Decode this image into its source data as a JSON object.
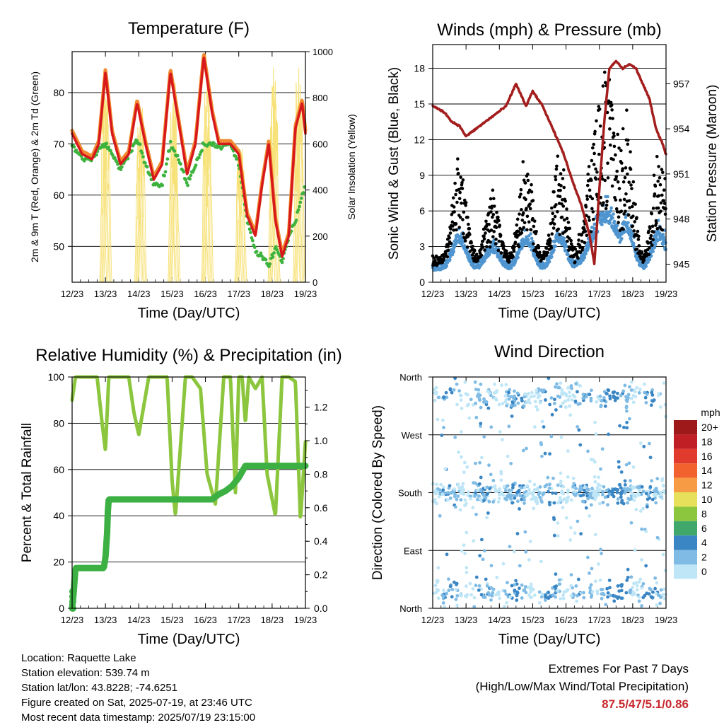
{
  "chart_data": [
    {
      "type": "line",
      "title": "Temperature (F)",
      "xlabel": "Time (Day/UTC)",
      "ylabel": "2m & 9m T (Red, Orange) & 2m Td (Green)",
      "y2label": "Solar Insolation (Yellow)",
      "x_ticks": [
        "12/23",
        "13/23",
        "14/23",
        "15/23",
        "16/23",
        "17/23",
        "18/23",
        "19/23"
      ],
      "ylim": [
        43,
        88
      ],
      "y_ticks": [
        50,
        60,
        70,
        80
      ],
      "y2lim": [
        0,
        1000
      ],
      "y2_ticks": [
        0,
        200,
        400,
        600,
        800,
        1000
      ],
      "colors": {
        "t2m": "#d7191c",
        "t9m": "#f28a30",
        "td": "#3db33d",
        "solar": "#f7e27a"
      },
      "series": [
        {
          "name": "2m T",
          "x": [
            0,
            0.3,
            0.6,
            0.8,
            1.0,
            1.2,
            1.45,
            1.7,
            1.95,
            2.2,
            2.45,
            2.7,
            2.95,
            3.2,
            3.45,
            3.7,
            3.95,
            4.2,
            4.4,
            4.6,
            4.75,
            5.0,
            5.25,
            5.5,
            5.7,
            5.9,
            6.1,
            6.3,
            6.5,
            6.7,
            6.9,
            7.0
          ],
          "values": [
            72,
            68,
            67,
            70,
            84,
            72,
            66,
            68,
            78,
            70,
            63,
            66,
            84,
            74,
            64,
            70,
            87,
            76,
            70,
            70,
            70,
            68,
            56,
            52,
            62,
            70,
            55,
            48,
            52,
            73,
            78,
            72
          ]
        },
        {
          "name": "2m Td",
          "x": [
            0,
            0.3,
            0.6,
            0.8,
            1.0,
            1.2,
            1.45,
            1.7,
            1.95,
            2.2,
            2.45,
            2.7,
            2.95,
            3.2,
            3.45,
            3.7,
            3.95,
            4.2,
            4.4,
            4.6,
            4.75,
            5.0,
            5.25,
            5.5,
            5.7,
            5.9,
            6.1,
            6.3,
            6.5,
            6.7,
            6.9,
            7.0
          ],
          "values": [
            70,
            67,
            67,
            69,
            70,
            68,
            65,
            68,
            71,
            66,
            62,
            62,
            70,
            67,
            62,
            66,
            70,
            70,
            69,
            70,
            70,
            66,
            55,
            49,
            48,
            46,
            50,
            47,
            52,
            55,
            60,
            62
          ]
        },
        {
          "name": "Solar",
          "x": [
            0.25,
            0.5,
            0.75,
            1.0,
            1.25,
            1.55,
            1.8,
            2.05,
            2.3,
            2.55,
            2.8,
            3.05,
            3.3,
            3.55,
            3.8,
            4.05,
            4.3,
            4.55,
            4.8,
            5.05,
            5.3,
            5.55,
            5.8,
            6.05,
            6.3,
            6.55,
            6.8
          ],
          "values": [
            0,
            0,
            0,
            940,
            0,
            0,
            0,
            800,
            0,
            0,
            0,
            880,
            0,
            0,
            0,
            920,
            0,
            0,
            0,
            600,
            0,
            0,
            0,
            960,
            0,
            0,
            950
          ]
        }
      ]
    },
    {
      "type": "scatter",
      "title": "Winds (mph) & Pressure (mb)",
      "xlabel": "Time (Day/UTC)",
      "ylabel": "Sonic Wind & Gust (Blue, Black)",
      "y2label": "Station Pressure (Maroon)",
      "x_ticks": [
        "12/23",
        "13/23",
        "14/23",
        "15/23",
        "16/23",
        "17/23",
        "18/23",
        "19/23"
      ],
      "ylim": [
        0,
        20
      ],
      "y_ticks": [
        0,
        3,
        6,
        9,
        12,
        15,
        18
      ],
      "y2lim": [
        943.8,
        959.6
      ],
      "y2_ticks": [
        945,
        948,
        951,
        954,
        957
      ],
      "colors": {
        "wind": "#4f95d0",
        "gust": "#000000",
        "pressure": "#a31d1d"
      },
      "series": [
        {
          "name": "Pressure",
          "x": [
            0,
            0.2,
            0.4,
            0.55,
            0.8,
            1.0,
            1.3,
            1.6,
            1.9,
            2.2,
            2.5,
            2.8,
            3.0,
            3.3,
            3.6,
            3.9,
            4.2,
            4.45,
            4.7,
            4.85,
            5.0,
            5.15,
            5.3,
            5.5,
            5.7,
            5.9,
            6.1,
            6.3,
            6.5,
            6.7,
            6.9,
            7.0
          ],
          "values": [
            955.5,
            955.3,
            955.0,
            954.5,
            954.2,
            953.5,
            954.0,
            954.5,
            955.0,
            955.5,
            957.0,
            955.5,
            956.5,
            955.5,
            954.0,
            952.5,
            950.5,
            949.0,
            947.0,
            945.0,
            950.0,
            954.5,
            958.0,
            958.5,
            958.0,
            958.3,
            958.0,
            957.0,
            956.0,
            954.0,
            953.0,
            952.3
          ]
        },
        {
          "name": "Gust daily peaks",
          "x": [
            0.8,
            1.8,
            2.8,
            3.8,
            4.8,
            5.2,
            5.8,
            6.8
          ],
          "values": [
            9,
            6,
            9,
            9,
            9,
            16,
            13,
            10
          ]
        }
      ]
    },
    {
      "type": "line",
      "title": "Relative Humidity (%) & Precipitation (in)",
      "xlabel": "Time (Day/UTC)",
      "ylabel": "Percent & Total Rainfall",
      "x_ticks": [
        "12/23",
        "13/23",
        "14/23",
        "15/23",
        "16/23",
        "17/23",
        "18/23",
        "19/23"
      ],
      "ylim": [
        0,
        100
      ],
      "y_ticks": [
        0,
        20,
        40,
        60,
        80,
        100
      ],
      "y2lim": [
        0,
        1.38
      ],
      "y2_ticks": [
        "0.0",
        "0.2",
        "0.4",
        "0.6",
        "0.8",
        "1.0",
        "1.2"
      ],
      "colors": {
        "rh": "#8cc63e",
        "precip": "#3cb043"
      },
      "series": [
        {
          "name": "RH",
          "x": [
            0,
            0.1,
            0.5,
            0.75,
            0.9,
            1.0,
            1.1,
            1.3,
            1.7,
            1.85,
            2.0,
            2.3,
            2.6,
            2.85,
            3.0,
            3.1,
            3.4,
            3.6,
            3.85,
            4.05,
            4.3,
            4.55,
            4.75,
            4.9,
            5.0,
            5.1,
            5.2,
            5.3,
            5.5,
            5.7,
            5.85,
            6.1,
            6.3,
            6.5,
            6.7,
            6.85,
            7.0
          ],
          "values": [
            90,
            100,
            100,
            100,
            80,
            68,
            100,
            100,
            100,
            85,
            75,
            100,
            100,
            100,
            55,
            40,
            100,
            100,
            95,
            58,
            45,
            100,
            100,
            50,
            100,
            100,
            80,
            100,
            95,
            100,
            58,
            40,
            100,
            100,
            98,
            38,
            72
          ]
        },
        {
          "name": "Precip",
          "x": [
            0,
            0.05,
            0.1,
            0.95,
            1.0,
            1.05,
            1.08,
            1.1,
            4.2,
            4.4,
            4.6,
            4.8,
            5.0,
            5.2,
            5.4,
            7.0
          ],
          "values": [
            0,
            0.1,
            0.24,
            0.24,
            0.3,
            0.45,
            0.62,
            0.65,
            0.65,
            0.68,
            0.7,
            0.73,
            0.78,
            0.85,
            0.85,
            0.85
          ]
        }
      ]
    },
    {
      "type": "scatter",
      "title": "Wind Direction",
      "xlabel": "Time (Day/UTC)",
      "ylabel": "Direction (Colored By Speed)",
      "x_ticks": [
        "12/23",
        "13/23",
        "14/23",
        "15/23",
        "16/23",
        "17/23",
        "18/23",
        "19/23"
      ],
      "y_ticks": [
        "North",
        "East",
        "South",
        "West",
        "North"
      ],
      "ylim": [
        0,
        360
      ],
      "legend": {
        "title": "mph",
        "position": "right",
        "labels": [
          "20+",
          "18",
          "16",
          "14",
          "12",
          "10",
          "8",
          "6",
          "4",
          "2",
          "0"
        ],
        "colors": [
          "#9e1a1a",
          "#c01f26",
          "#e03b2c",
          "#f2622f",
          "#f79c45",
          "#e6e05a",
          "#8cc63e",
          "#3fa86a",
          "#3a86c4",
          "#7fbbe4",
          "#bfe6f6"
        ]
      }
    }
  ],
  "info": {
    "location": "Location: Raquette Lake",
    "elevation": "Station elevation: 539.74 m",
    "latlon": "Station lat/lon: 43.8228; -74.6251",
    "created": "Figure created on Sat, 2025-07-19, at 23:46 UTC",
    "latest": "Most recent data timestamp: 2025/07/19 23:15:00"
  },
  "extremes": {
    "title": "Extremes For Past 7 Days",
    "subtitle": "(High/Low/Max Wind/Total Precipitation)",
    "value": "87.5/47/5.1/0.86"
  }
}
